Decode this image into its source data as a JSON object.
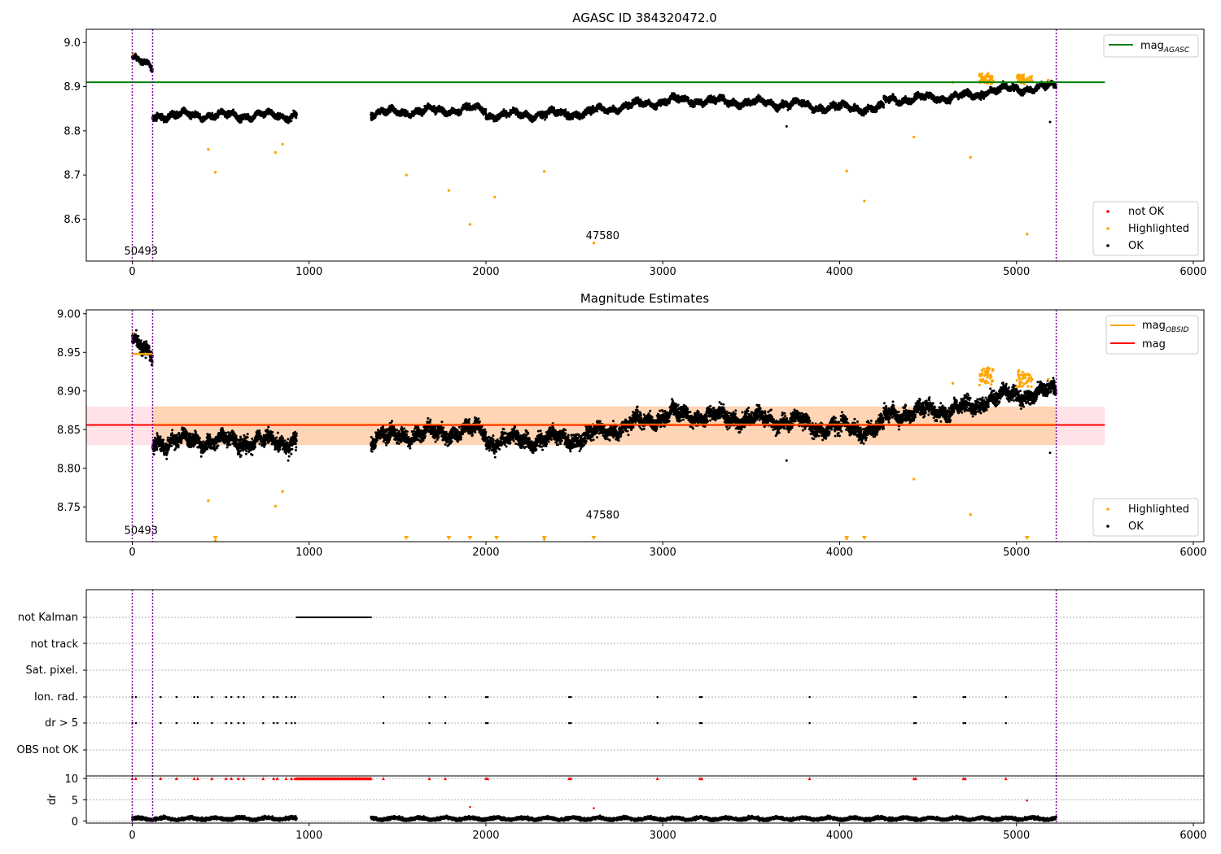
{
  "chart_data": [
    {
      "type": "scatter",
      "title": "AGASC ID 384320472.0",
      "xlim": [
        -260,
        6060
      ],
      "ylim": [
        8.505,
        9.03
      ],
      "xticks": [
        0,
        1000,
        2000,
        3000,
        4000,
        5000,
        6000
      ],
      "yticks": [
        8.6,
        8.7,
        8.8,
        8.9,
        9.0
      ],
      "vlines": [
        0,
        115,
        5225
      ],
      "reference_lines": [
        {
          "name": "mag",
          "subscript": "AGASC",
          "y": 8.91,
          "x_range": [
            -260,
            5500
          ],
          "color": "#008000"
        }
      ],
      "annotations": [
        {
          "text": "50493",
          "x": 50,
          "y": 8.52
        },
        {
          "text": "47580",
          "x": 2660,
          "y": 8.555
        }
      ],
      "legend": [
        {
          "label": "not OK",
          "color": "#ff0000"
        },
        {
          "label": "Highlighted",
          "color": "#ffa500"
        },
        {
          "label": "OK",
          "color": "#000000"
        }
      ],
      "segments_ok": [
        {
          "x0": 0,
          "x1": 115,
          "y0": 8.965,
          "y1": 8.94,
          "spread": 0.01
        },
        {
          "x0": 115,
          "x1": 930,
          "y0": 8.835,
          "y1": 8.835,
          "spread": 0.012
        },
        {
          "x0": 1350,
          "x1": 2000,
          "y0": 8.84,
          "y1": 8.85,
          "spread": 0.012
        },
        {
          "x0": 2000,
          "x1": 2600,
          "y0": 8.835,
          "y1": 8.84,
          "spread": 0.012
        },
        {
          "x0": 2600,
          "x1": 3050,
          "y0": 8.845,
          "y1": 8.87,
          "spread": 0.012
        },
        {
          "x0": 3050,
          "x1": 3800,
          "y0": 8.87,
          "y1": 8.86,
          "spread": 0.012
        },
        {
          "x0": 3800,
          "x1": 4250,
          "y0": 8.855,
          "y1": 8.85,
          "spread": 0.012
        },
        {
          "x0": 4250,
          "x1": 4800,
          "y0": 8.87,
          "y1": 8.88,
          "spread": 0.012
        },
        {
          "x0": 4800,
          "x1": 5225,
          "y0": 8.89,
          "y1": 8.9,
          "spread": 0.012
        }
      ],
      "highlighted_points": [
        {
          "x": 5,
          "y": 8.975
        },
        {
          "x": 430,
          "y": 8.758
        },
        {
          "x": 470,
          "y": 8.706
        },
        {
          "x": 810,
          "y": 8.751
        },
        {
          "x": 850,
          "y": 8.77
        },
        {
          "x": 1550,
          "y": 8.7
        },
        {
          "x": 1790,
          "y": 8.665
        },
        {
          "x": 1910,
          "y": 8.588
        },
        {
          "x": 2050,
          "y": 8.65
        },
        {
          "x": 2330,
          "y": 8.708
        },
        {
          "x": 2610,
          "y": 8.546
        },
        {
          "x": 4040,
          "y": 8.709
        },
        {
          "x": 4140,
          "y": 8.641
        },
        {
          "x": 4420,
          "y": 8.786
        },
        {
          "x": 4740,
          "y": 8.74
        },
        {
          "x": 5060,
          "y": 8.566
        },
        {
          "x": 4820,
          "y": 8.92
        },
        {
          "x": 4840,
          "y": 8.93
        },
        {
          "x": 5010,
          "y": 8.925
        },
        {
          "x": 5040,
          "y": 8.92
        },
        {
          "x": 5070,
          "y": 8.915
        },
        {
          "x": 5180,
          "y": 8.915
        },
        {
          "x": 4640,
          "y": 8.91
        }
      ],
      "outlier_ok": [
        {
          "x": 5190,
          "y": 8.82
        },
        {
          "x": 3700,
          "y": 8.81
        }
      ]
    },
    {
      "type": "scatter",
      "title": "Magnitude Estimates",
      "xlim": [
        -260,
        6060
      ],
      "ylim": [
        8.705,
        9.005
      ],
      "xticks": [
        0,
        1000,
        2000,
        3000,
        4000,
        5000,
        6000
      ],
      "yticks": [
        8.75,
        8.8,
        8.85,
        8.9,
        8.95,
        9.0
      ],
      "vlines": [
        0,
        115,
        5225
      ],
      "reference_lines": [
        {
          "name": "mag",
          "subscript": "OBSID",
          "y": 8.948,
          "x_range": [
            0,
            115
          ],
          "color": "#ffa500"
        },
        {
          "name": "mag",
          "subscript": "",
          "y": 8.856,
          "x_range": [
            -260,
            5500
          ],
          "color": "#ff0000"
        }
      ],
      "bands": [
        {
          "y_range": [
            8.83,
            8.88
          ],
          "x_range": [
            -260,
            5500
          ],
          "color": "#ffc0cb"
        },
        {
          "y_range": [
            8.83,
            8.88
          ],
          "x_range": [
            115,
            5225
          ],
          "color": "#ffa500"
        }
      ],
      "annotations": [
        {
          "text": "50493",
          "x": 50,
          "y": 8.715
        },
        {
          "text": "47580",
          "x": 2660,
          "y": 8.735
        }
      ],
      "legend": [
        {
          "label": "Highlighted",
          "color": "#ffa500"
        },
        {
          "label": "OK",
          "color": "#000000"
        }
      ],
      "clipped_markers_x": [
        470,
        1550,
        1790,
        1910,
        2060,
        2330,
        2610,
        4040,
        4140,
        5060
      ]
    },
    {
      "type": "scatter",
      "title": "",
      "xlim": [
        -260,
        6060
      ],
      "xticks": [
        0,
        1000,
        2000,
        3000,
        4000,
        5000,
        6000
      ],
      "vlines": [
        0,
        115,
        5225
      ],
      "flag_rows": [
        "not Kalman",
        "not track",
        "Sat. pixel.",
        "Ion. rad.",
        "dr > 5",
        "OBS not OK"
      ],
      "not_kalman_range": [
        930,
        1350
      ],
      "flag_times": [
        0,
        20,
        160,
        250,
        350,
        370,
        450,
        530,
        560,
        600,
        630,
        740,
        800,
        820,
        870,
        900,
        920,
        1420,
        1680,
        1770,
        2000,
        2010,
        2470,
        2480,
        2970,
        3210,
        3220,
        3830,
        4420,
        4430,
        4700,
        4710,
        4940
      ],
      "dr_panel": {
        "ylabel": "dr",
        "ylim": [
          -0.5,
          10.6
        ],
        "yticks": [
          0,
          5,
          10
        ],
        "cap": 10,
        "outliers": [
          {
            "x": 1910,
            "y": 3.3
          },
          {
            "x": 2610,
            "y": 3.0
          },
          {
            "x": 5060,
            "y": 4.8
          }
        ]
      }
    }
  ]
}
